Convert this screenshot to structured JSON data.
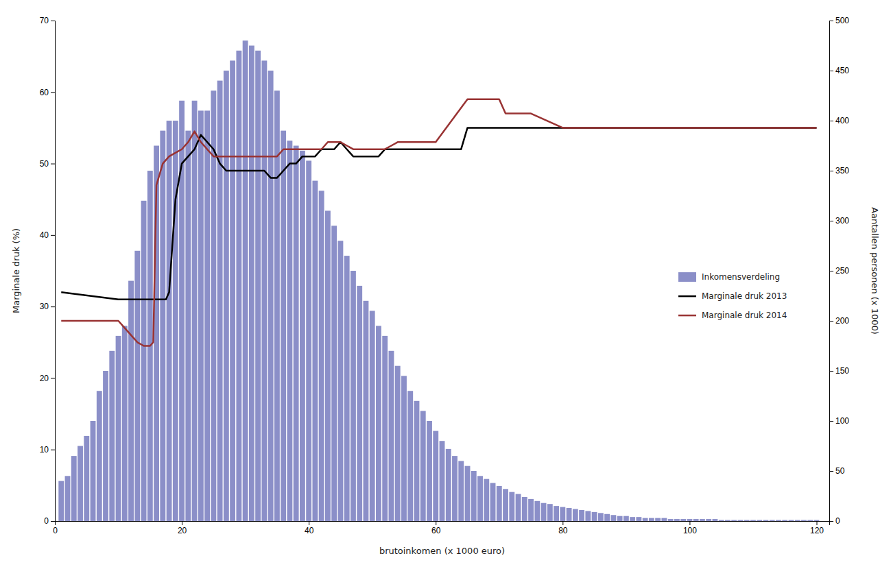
{
  "chart_data": {
    "type": "bar",
    "xlabel": "brutoinkomen (x 1000 euro)",
    "ylabel": "Marginale druk (%)",
    "y2label": "Aantallen personen (x 1000)",
    "xlim": [
      0,
      122
    ],
    "ylim": [
      0,
      70
    ],
    "y2lim": [
      0,
      500
    ],
    "xticks": [
      0,
      20,
      40,
      60,
      80,
      100,
      120
    ],
    "yticks": [
      0,
      10,
      20,
      30,
      40,
      50,
      60,
      70
    ],
    "y2ticks": [
      0,
      50,
      100,
      150,
      200,
      250,
      300,
      350,
      400,
      450,
      500
    ],
    "grid": false,
    "legend": "right",
    "series": [
      {
        "name": "Inkomensverdeling",
        "type": "bar",
        "axis": "y2",
        "color": "#8B8FC8",
        "x": [
          1,
          2,
          3,
          4,
          5,
          6,
          7,
          8,
          9,
          10,
          11,
          12,
          13,
          14,
          15,
          16,
          17,
          18,
          19,
          20,
          21,
          22,
          23,
          24,
          25,
          26,
          27,
          28,
          29,
          30,
          31,
          32,
          33,
          34,
          35,
          36,
          37,
          38,
          39,
          40,
          41,
          42,
          43,
          44,
          45,
          46,
          47,
          48,
          49,
          50,
          51,
          52,
          53,
          54,
          55,
          56,
          57,
          58,
          59,
          60,
          61,
          62,
          63,
          64,
          65,
          66,
          67,
          68,
          69,
          70,
          71,
          72,
          73,
          74,
          75,
          76,
          77,
          78,
          79,
          80,
          81,
          82,
          83,
          84,
          85,
          86,
          87,
          88,
          89,
          90,
          91,
          92,
          93,
          94,
          95,
          96,
          97,
          98,
          99,
          100,
          101,
          102,
          103,
          104,
          105,
          106,
          107,
          108,
          109,
          110,
          111,
          112,
          113,
          114,
          115,
          116,
          117,
          118,
          119,
          120
        ],
        "values": [
          40,
          45,
          65,
          75,
          85,
          100,
          130,
          150,
          170,
          185,
          195,
          240,
          270,
          320,
          350,
          375,
          390,
          400,
          400,
          420,
          390,
          420,
          410,
          410,
          430,
          440,
          450,
          460,
          470,
          480,
          475,
          470,
          460,
          450,
          430,
          390,
          380,
          375,
          370,
          360,
          340,
          330,
          310,
          295,
          280,
          265,
          250,
          235,
          220,
          210,
          195,
          185,
          170,
          155,
          145,
          130,
          120,
          110,
          100,
          90,
          80,
          72,
          65,
          60,
          55,
          50,
          45,
          42,
          38,
          35,
          32,
          29,
          27,
          24,
          22,
          20,
          18,
          17,
          15,
          14,
          13,
          12,
          11,
          10,
          9,
          8,
          7,
          6,
          5,
          5,
          4,
          4,
          3,
          3,
          3,
          3,
          2,
          2,
          2,
          2,
          2,
          2,
          2,
          2,
          1,
          1,
          1,
          1,
          1,
          1,
          1,
          1,
          1,
          1,
          1,
          1,
          1,
          1,
          1,
          1
        ]
      },
      {
        "name": "Marginale druk 2013",
        "type": "line",
        "color": "#000000",
        "x": [
          1,
          10,
          11,
          12,
          13,
          14,
          15,
          16,
          17,
          17.5,
          18,
          19,
          20,
          21,
          22,
          23,
          24,
          25,
          26,
          27,
          28,
          29,
          30,
          31,
          32,
          33,
          34,
          35,
          36,
          37,
          38,
          39,
          40,
          41,
          42,
          43,
          44,
          45,
          46,
          47,
          48,
          49,
          50,
          51,
          52,
          53,
          54,
          55,
          56,
          57,
          58,
          59,
          60,
          61,
          62,
          63,
          64,
          65,
          66,
          67,
          68,
          69,
          70,
          75,
          80,
          85,
          90,
          95,
          100,
          105,
          110,
          115,
          120
        ],
        "values": [
          32,
          31,
          31,
          31,
          31,
          31,
          31,
          31,
          31,
          31,
          32,
          45,
          50,
          51,
          52,
          54,
          53,
          52,
          50,
          49,
          49,
          49,
          49,
          49,
          49,
          49,
          48,
          48,
          49,
          50,
          50,
          51,
          51,
          51,
          52,
          52,
          52,
          53,
          52,
          51,
          51,
          51,
          51,
          51,
          52,
          52,
          52,
          52,
          52,
          52,
          52,
          52,
          52,
          52,
          52,
          52,
          52,
          55,
          55,
          55,
          55,
          55,
          55,
          55,
          55,
          55,
          55,
          55,
          55,
          55,
          55,
          55,
          55
        ]
      },
      {
        "name": "Marginale druk 2014",
        "type": "line",
        "color": "#993333",
        "x": [
          1,
          10,
          11,
          12,
          13,
          14,
          15,
          15.5,
          16,
          17,
          18,
          19,
          20,
          21,
          22,
          23,
          24,
          25,
          26,
          27,
          28,
          29,
          30,
          31,
          32,
          33,
          34,
          35,
          36,
          37,
          38,
          39,
          40,
          41,
          42,
          43,
          44,
          45,
          46,
          47,
          48,
          49,
          50,
          51,
          52,
          53,
          54,
          55,
          56,
          57,
          58,
          59,
          60,
          65,
          66,
          67,
          68,
          69,
          70,
          71,
          72,
          73,
          74,
          75,
          80,
          85,
          90,
          95,
          100,
          105,
          110,
          115,
          120
        ],
        "values": [
          28,
          28,
          27,
          26,
          25,
          24.5,
          24.5,
          25,
          47,
          50,
          51,
          51.5,
          52,
          53,
          54.5,
          53,
          52,
          51,
          51,
          51,
          51,
          51,
          51,
          51,
          51,
          51,
          51,
          51,
          52,
          52,
          52,
          52,
          52,
          52,
          52,
          53,
          53,
          53,
          52.5,
          52,
          52,
          52,
          52,
          52,
          52,
          52.5,
          53,
          53,
          53,
          53,
          53,
          53,
          53,
          59,
          59,
          59,
          59,
          59,
          59,
          57,
          57,
          57,
          57,
          57,
          55,
          55,
          55,
          55,
          55,
          55,
          55,
          55,
          55
        ]
      }
    ]
  }
}
